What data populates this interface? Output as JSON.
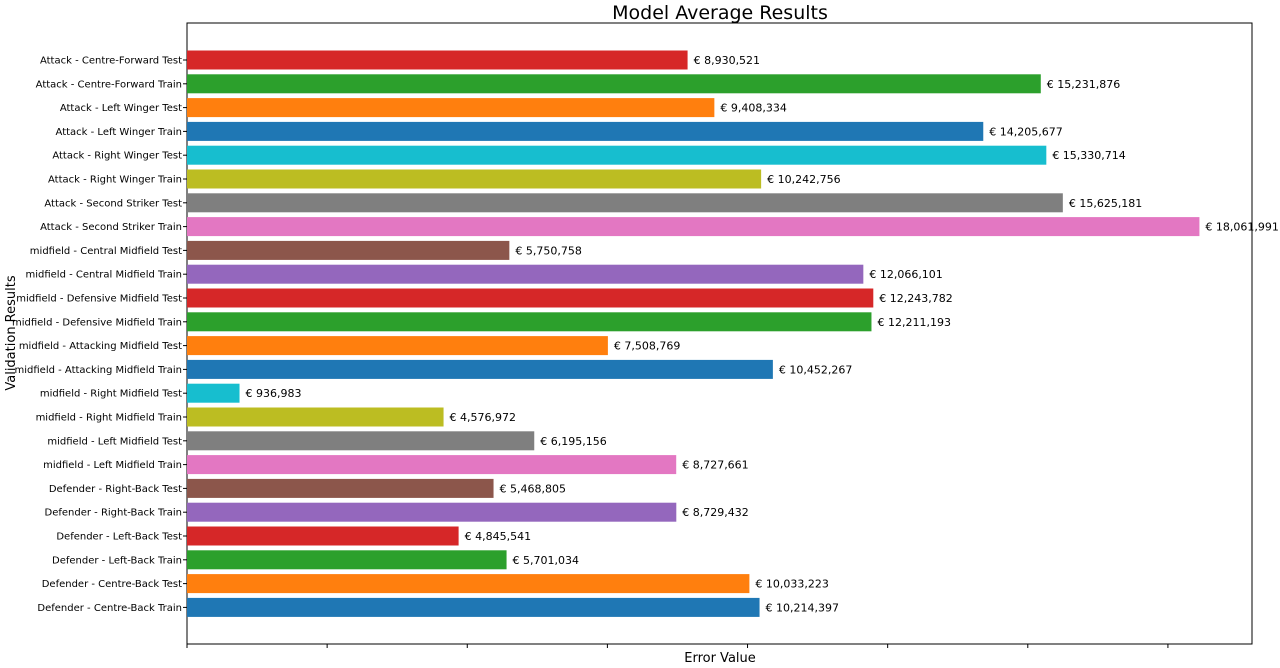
{
  "chart_data": {
    "type": "bar",
    "orientation": "horizontal",
    "title": "Model Average Results",
    "xlabel": "Error Value",
    "ylabel": "Validation Results",
    "xlim": [
      0,
      19000000
    ],
    "grid": false,
    "x_tick_labels_visible": false,
    "value_prefix": "€ ",
    "categories": [
      "Attack - Centre-Forward Test",
      "Attack - Centre-Forward Train",
      "Attack - Left Winger Test",
      "Attack - Left Winger Train",
      "Attack - Right Winger Test",
      "Attack - Right Winger Train",
      "Attack - Second Striker Test",
      "Attack - Second Striker Train",
      "midfield - Central Midfield Test",
      "midfield - Central Midfield Train",
      "midfield - Defensive Midfield Test",
      "midfield - Defensive Midfield Train",
      "midfield - Attacking Midfield Test",
      "midfield - Attacking Midfield Train",
      "midfield - Right Midfield Test",
      "midfield - Right Midfield Train",
      "midfield - Left Midfield Test",
      "midfield - Left Midfield Train",
      "Defender - Right-Back Test",
      "Defender - Right-Back Train",
      "Defender - Left-Back Test",
      "Defender - Left-Back Train",
      "Defender - Centre-Back Test",
      "Defender - Centre-Back Train"
    ],
    "values": [
      8930521,
      15231876,
      9408334,
      14205677,
      15330714,
      10242756,
      15625181,
      18061991,
      5750758,
      12066101,
      12243782,
      12211193,
      7508769,
      10452267,
      936983,
      4576972,
      6195156,
      8727661,
      5468805,
      8729432,
      4845541,
      5701034,
      10033223,
      10214397
    ],
    "data_labels": [
      "€ 8,930,521",
      "€ 15,231,876",
      "€ 9,408,334",
      "€ 14,205,677",
      "€ 15,330,714",
      "€ 10,242,756",
      "€ 15,625,181",
      "€ 18,061,991",
      "€ 5,750,758",
      "€ 12,066,101",
      "€ 12,243,782",
      "€ 12,211,193",
      "€ 7,508,769",
      "€ 10,452,267",
      "€ 936,983",
      "€ 4,576,972",
      "€ 6,195,156",
      "€ 8,727,661",
      "€ 5,468,805",
      "€ 8,729,432",
      "€ 4,845,541",
      "€ 5,701,034",
      "€ 10,033,223",
      "€ 10,214,397"
    ],
    "colors": [
      "#d62728",
      "#2ca02c",
      "#ff7f0e",
      "#1f77b4",
      "#17becf",
      "#bcbd22",
      "#7f7f7f",
      "#e377c2",
      "#8c564b",
      "#9467bd",
      "#d62728",
      "#2ca02c",
      "#ff7f0e",
      "#1f77b4",
      "#17becf",
      "#bcbd22",
      "#7f7f7f",
      "#e377c2",
      "#8c564b",
      "#9467bd",
      "#d62728",
      "#2ca02c",
      "#ff7f0e",
      "#1f77b4"
    ]
  }
}
